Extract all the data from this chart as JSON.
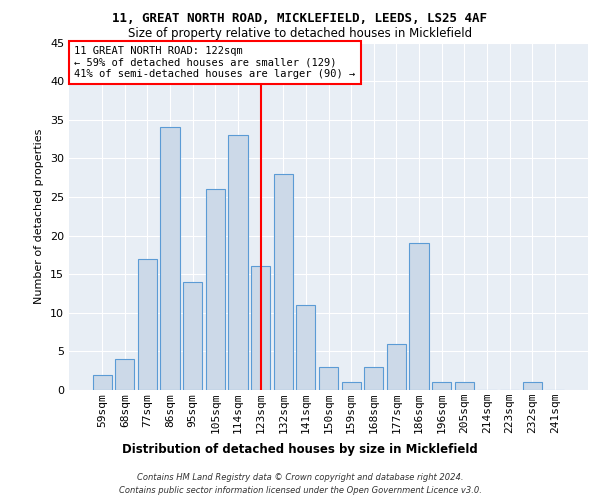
{
  "title1": "11, GREAT NORTH ROAD, MICKLEFIELD, LEEDS, LS25 4AF",
  "title2": "Size of property relative to detached houses in Micklefield",
  "xlabel": "Distribution of detached houses by size in Micklefield",
  "ylabel": "Number of detached properties",
  "bar_labels": [
    "59sqm",
    "68sqm",
    "77sqm",
    "86sqm",
    "95sqm",
    "105sqm",
    "114sqm",
    "123sqm",
    "132sqm",
    "141sqm",
    "150sqm",
    "159sqm",
    "168sqm",
    "177sqm",
    "186sqm",
    "196sqm",
    "205sqm",
    "214sqm",
    "223sqm",
    "232sqm",
    "241sqm"
  ],
  "bar_values": [
    2,
    4,
    17,
    34,
    14,
    26,
    33,
    16,
    28,
    11,
    3,
    1,
    3,
    6,
    19,
    1,
    1,
    0,
    0,
    1,
    0
  ],
  "bar_color": "#ccd9e8",
  "bar_edge_color": "#5b9bd5",
  "reference_line_index": 7,
  "ylim": [
    0,
    45
  ],
  "yticks": [
    0,
    5,
    10,
    15,
    20,
    25,
    30,
    35,
    40,
    45
  ],
  "annotation_title": "11 GREAT NORTH ROAD: 122sqm",
  "annotation_line1": "← 59% of detached houses are smaller (129)",
  "annotation_line2": "41% of semi-detached houses are larger (90) →",
  "footer1": "Contains HM Land Registry data © Crown copyright and database right 2024.",
  "footer2": "Contains public sector information licensed under the Open Government Licence v3.0.",
  "bg_color": "#ffffff",
  "plot_bg_color": "#e8eef5"
}
